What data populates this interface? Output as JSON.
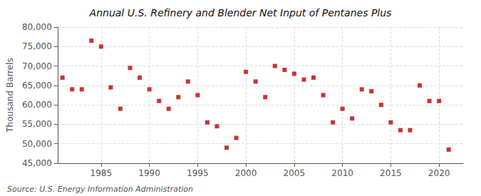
{
  "chart_data": {
    "type": "scatter",
    "title": "Annual U.S. Refinery and Blender Net Input of Pentanes Plus",
    "ylabel": "Thousand Barrels",
    "annotations": [
      "Source: U.S. Energy Information Administration"
    ],
    "x": [
      1981,
      1982,
      1983,
      1984,
      1985,
      1986,
      1987,
      1988,
      1989,
      1990,
      1991,
      1992,
      1993,
      1994,
      1995,
      1996,
      1997,
      1998,
      1999,
      2000,
      2001,
      2002,
      2003,
      2004,
      2005,
      2006,
      2007,
      2008,
      2009,
      2010,
      2011,
      2012,
      2013,
      2014,
      2015,
      2016,
      2017,
      2018,
      2019,
      2020,
      2021
    ],
    "values": [
      67000,
      64000,
      64000,
      76500,
      75000,
      64500,
      59000,
      69500,
      67000,
      64000,
      61000,
      59000,
      62000,
      66000,
      62500,
      55500,
      54500,
      49000,
      51500,
      68500,
      66000,
      62000,
      70000,
      69000,
      68000,
      66500,
      67000,
      62500,
      55500,
      59000,
      56500,
      64000,
      63500,
      60000,
      55500,
      53500,
      53500,
      65000,
      61000,
      61000,
      48500
    ],
    "color": "#c00000",
    "marker": "square",
    "xlim": [
      1980.5,
      2022.5
    ],
    "xticks": [
      1985,
      1990,
      1995,
      2000,
      2005,
      2010,
      2015,
      2020
    ],
    "ylim": [
      45000,
      80000
    ],
    "yticks": [
      {
        "value": 45000,
        "label": "45,000"
      },
      {
        "value": 50000,
        "label": "50,000"
      },
      {
        "value": 55000,
        "label": "55,000"
      },
      {
        "value": 60000,
        "label": "60,000"
      },
      {
        "value": 65000,
        "label": "65,000"
      },
      {
        "value": 70000,
        "label": "70,000"
      },
      {
        "value": 75000,
        "label": "75,000"
      },
      {
        "value": 80000,
        "label": "80,000"
      }
    ],
    "grid": true
  }
}
